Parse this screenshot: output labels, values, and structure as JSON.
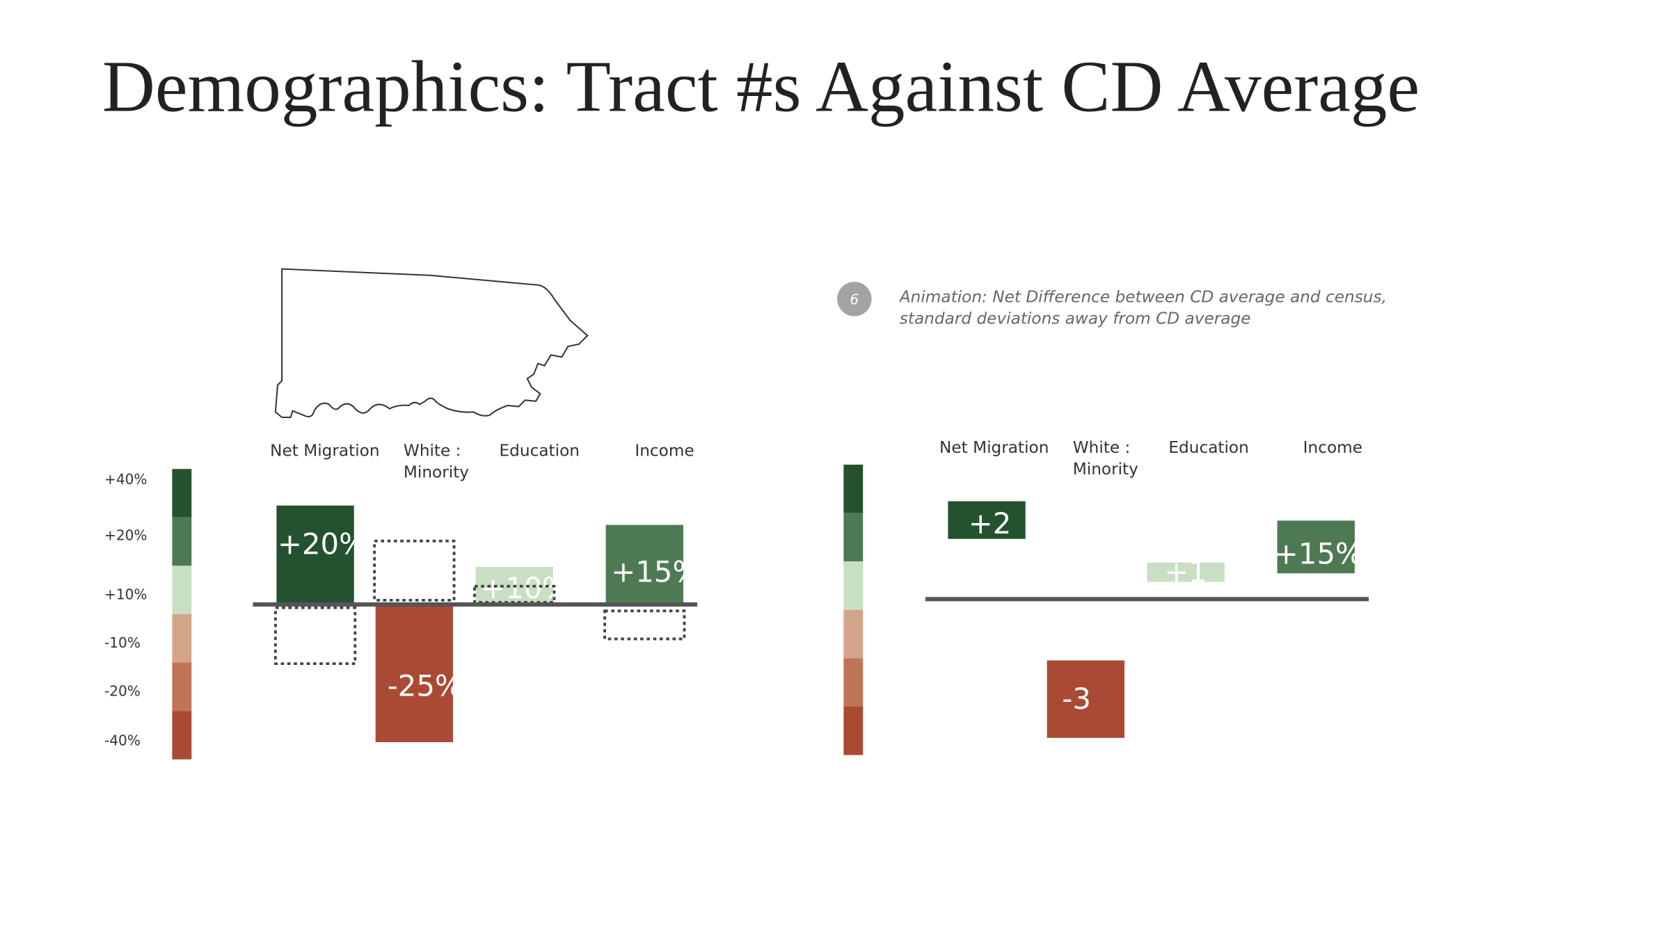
{
  "title": "Demographics: Tract #s Against CD Average",
  "note": {
    "number": "6",
    "text": "Animation: Net Difference between CD average and census, standard deviations away from CD average"
  },
  "legend": {
    "labels": [
      "+40%",
      "+20%",
      "+10%",
      "-10%",
      "-20%",
      "-40%"
    ],
    "colors": [
      "#24522f",
      "#4e7a53",
      "#c8dfc4",
      "#d4a488",
      "#c07457",
      "#ab4a34"
    ]
  },
  "left_panel": {
    "categories": [
      [
        "Net Migration"
      ],
      [
        "White :",
        "Minority"
      ],
      [
        "Education"
      ],
      [
        "Income"
      ]
    ],
    "bar_labels": [
      "+20%",
      "-25%",
      "+10%",
      "+15%"
    ]
  },
  "right_panel": {
    "categories": [
      [
        "Net Migration"
      ],
      [
        "White :",
        "Minority"
      ],
      [
        "Education"
      ],
      [
        "Income"
      ]
    ],
    "bar_labels": [
      "+2",
      "-3",
      "+1",
      "+15%"
    ]
  }
}
